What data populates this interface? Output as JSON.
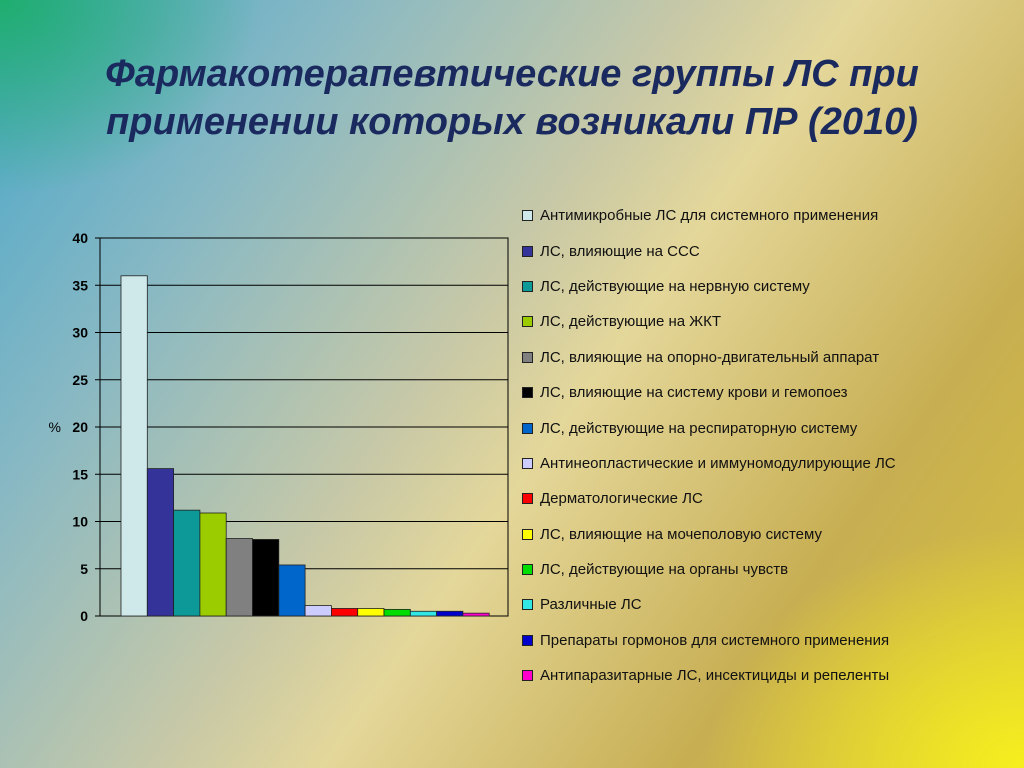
{
  "title": "Фармакотерапевтические группы ЛС при применении которых возникали ПР (2010)",
  "chart_data": {
    "type": "bar",
    "ylabel": "%",
    "ylim": [
      0,
      40
    ],
    "yticks": [
      0,
      5,
      10,
      15,
      20,
      25,
      30,
      35,
      40
    ],
    "grid": true,
    "legend_position": "right",
    "series": [
      {
        "name": "Антимикробные ЛС для системного применения",
        "value": 36,
        "color": "#cfe9ea"
      },
      {
        "name": "ЛС, влияющие на ССС",
        "value": 15.6,
        "color": "#33339a"
      },
      {
        "name": "ЛС, действующие на нервную систему",
        "value": 11.2,
        "color": "#0e9999"
      },
      {
        "name": "ЛС, действующие на ЖКТ",
        "value": 10.9,
        "color": "#9acc00"
      },
      {
        "name": "ЛС, влияющие на опорно-двигательный аппарат",
        "value": 8.2,
        "color": "#808080"
      },
      {
        "name": "ЛС, влияющие на систему крови и гемопоез",
        "value": 8.1,
        "color": "#000000"
      },
      {
        "name": "ЛС, действующие на респираторную систему",
        "value": 5.4,
        "color": "#0066cc"
      },
      {
        "name": "Антинеопластические и иммуномодулирующие ЛС",
        "value": 1.1,
        "color": "#ccccff"
      },
      {
        "name": "Дерматологические ЛС",
        "value": 0.8,
        "color": "#ff0000"
      },
      {
        "name": "ЛС, влияющие на мочеполовую систему",
        "value": 0.8,
        "color": "#ffff00"
      },
      {
        "name": "ЛС, действующие на органы чувств",
        "value": 0.7,
        "color": "#00dd00"
      },
      {
        "name": "Различные ЛС",
        "value": 0.5,
        "color": "#33e6e6"
      },
      {
        "name": "Препараты гормонов для системного применения",
        "value": 0.5,
        "color": "#0000cc"
      },
      {
        "name": "Антипаразитарные ЛС, инсектициды и репеленты",
        "value": 0.3,
        "color": "#ff00cc"
      }
    ]
  }
}
